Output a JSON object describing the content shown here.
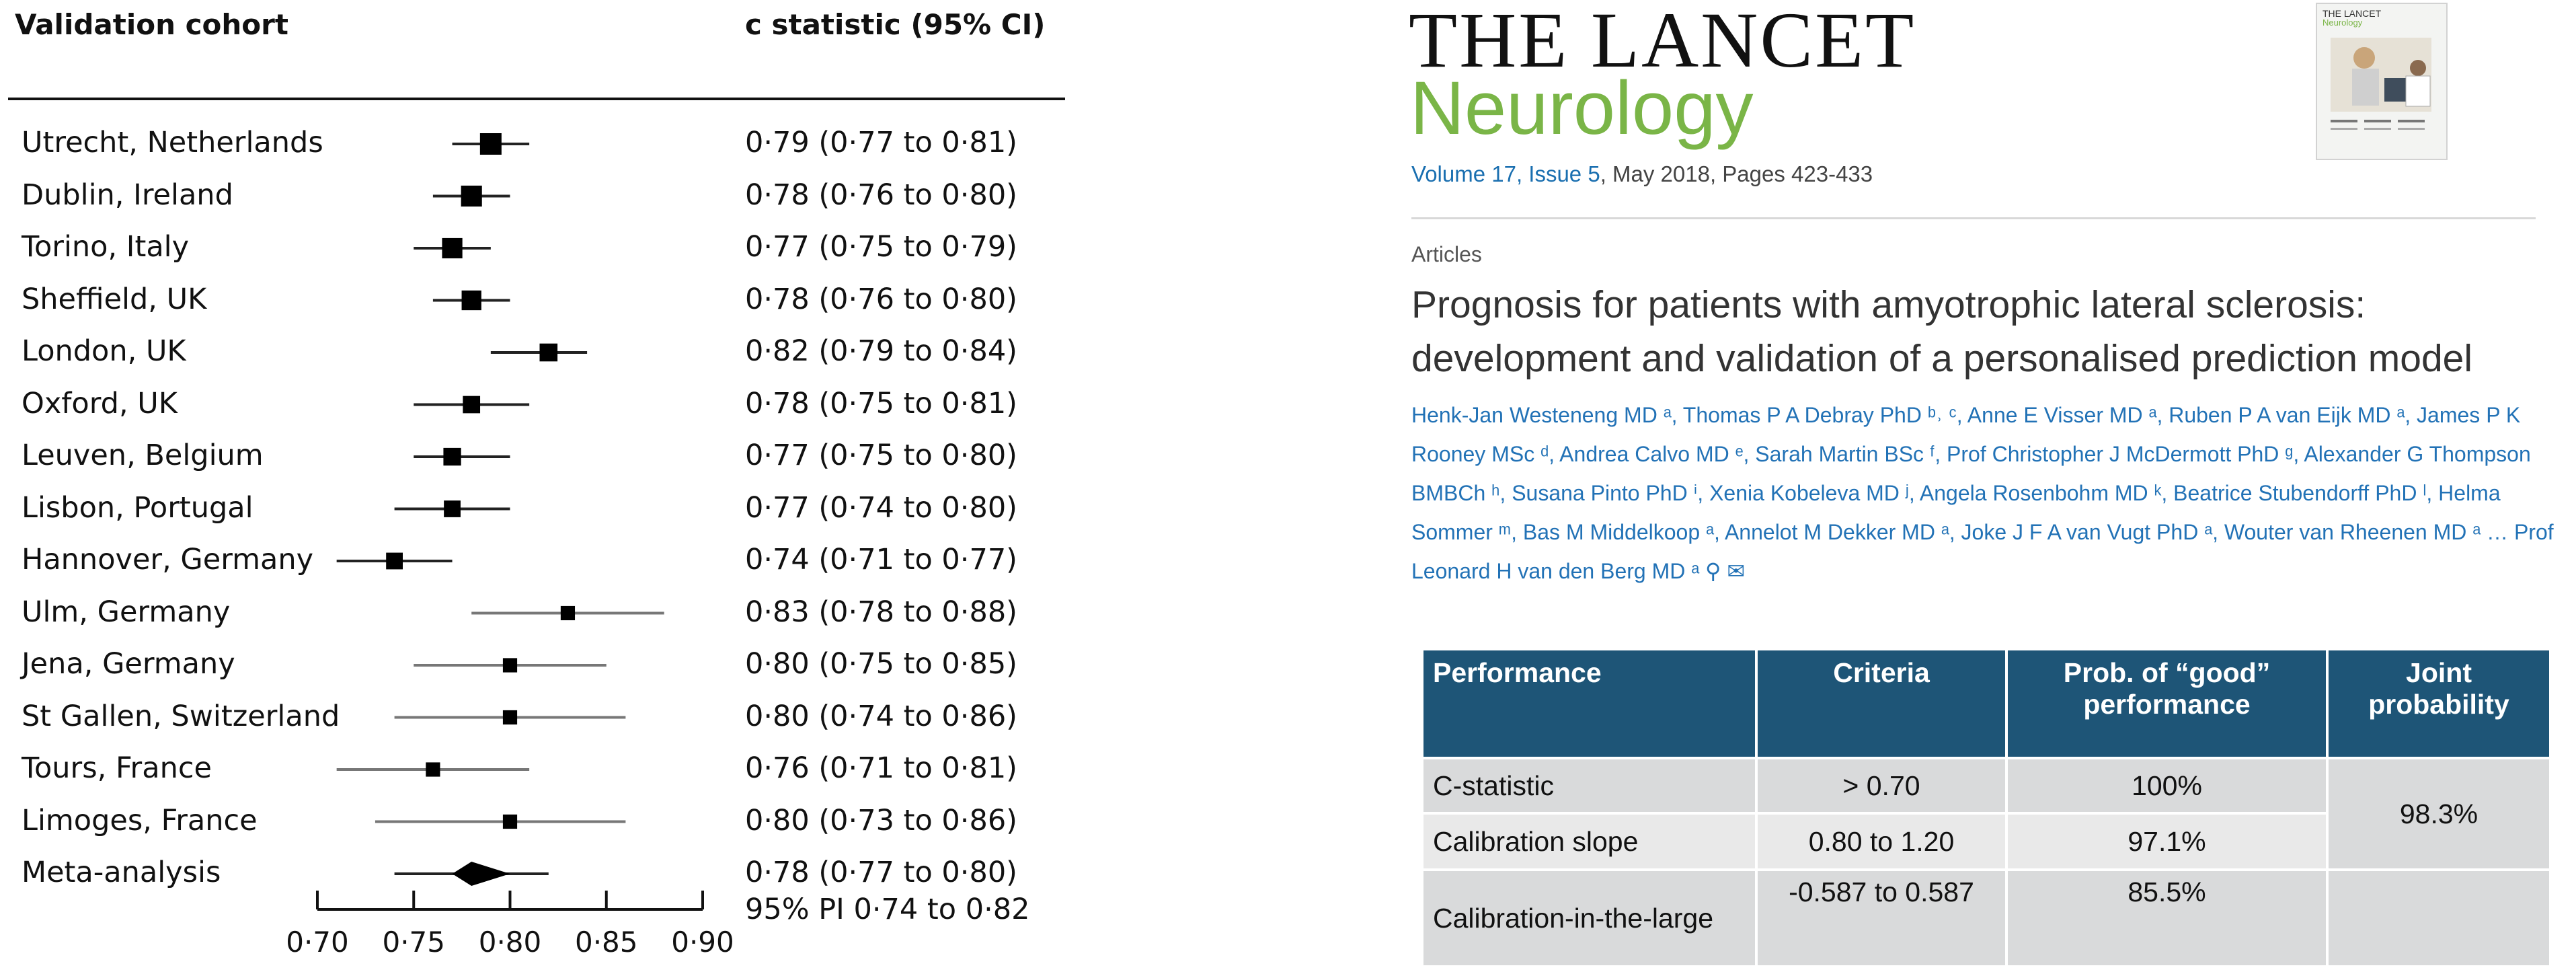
{
  "forest_plot": {
    "header_left": "Validation cohort",
    "header_right": "c statistic (95% CI)",
    "pi_text": "95% PI 0·74 to 0·82"
  },
  "chart_data": {
    "type": "forest",
    "x_ticks": [
      "0·70",
      "0·75",
      "0·80",
      "0·85",
      "0·90"
    ],
    "xlim": [
      0.7,
      0.9
    ],
    "rows": [
      {
        "label": "Utrecht, Netherlands",
        "ci_text": "0·79 (0·77 to 0·81)",
        "est": 0.79,
        "lo": 0.77,
        "hi": 0.81,
        "weight": 1.0
      },
      {
        "label": "Dublin, Ireland",
        "ci_text": "0·78 (0·76 to 0·80)",
        "est": 0.78,
        "lo": 0.76,
        "hi": 0.8,
        "weight": 0.95
      },
      {
        "label": "Torino, Italy",
        "ci_text": "0·77 (0·75 to 0·79)",
        "est": 0.77,
        "lo": 0.75,
        "hi": 0.79,
        "weight": 0.9
      },
      {
        "label": "Sheffield, UK",
        "ci_text": "0·78 (0·76 to 0·80)",
        "est": 0.78,
        "lo": 0.76,
        "hi": 0.8,
        "weight": 0.85
      },
      {
        "label": "London, UK",
        "ci_text": "0·82 (0·79 to 0·84)",
        "est": 0.82,
        "lo": 0.79,
        "hi": 0.84,
        "weight": 0.7
      },
      {
        "label": "Oxford, UK",
        "ci_text": "0·78 (0·75 to 0·81)",
        "est": 0.78,
        "lo": 0.75,
        "hi": 0.81,
        "weight": 0.65
      },
      {
        "label": "Leuven, Belgium",
        "ci_text": "0·77 (0·75 to 0·80)",
        "est": 0.77,
        "lo": 0.75,
        "hi": 0.8,
        "weight": 0.68
      },
      {
        "label": "Lisbon, Portugal",
        "ci_text": "0·77 (0·74 to 0·80)",
        "est": 0.77,
        "lo": 0.74,
        "hi": 0.8,
        "weight": 0.6
      },
      {
        "label": "Hannover, Germany",
        "ci_text": "0·74 (0·71 to 0·77)",
        "est": 0.74,
        "lo": 0.71,
        "hi": 0.77,
        "weight": 0.6
      },
      {
        "label": "Ulm, Germany",
        "ci_text": "0·83 (0·78 to 0·88)",
        "est": 0.83,
        "lo": 0.78,
        "hi": 0.88,
        "weight": 0.4
      },
      {
        "label": "Jena, Germany",
        "ci_text": "0·80 (0·75 to 0·85)",
        "est": 0.8,
        "lo": 0.75,
        "hi": 0.85,
        "weight": 0.4
      },
      {
        "label": "St Gallen, Switzerland",
        "ci_text": "0·80 (0·74 to 0·86)",
        "est": 0.8,
        "lo": 0.74,
        "hi": 0.86,
        "weight": 0.4
      },
      {
        "label": "Tours, France",
        "ci_text": "0·76 (0·71 to 0·81)",
        "est": 0.76,
        "lo": 0.71,
        "hi": 0.81,
        "weight": 0.4
      },
      {
        "label": "Limoges, France",
        "ci_text": "0·80 (0·73 to 0·86)",
        "est": 0.8,
        "lo": 0.73,
        "hi": 0.86,
        "weight": 0.4
      }
    ],
    "meta": {
      "label": "Meta-analysis",
      "ci_text": "0·78 (0·77 to 0·80)",
      "est": 0.78,
      "lo": 0.77,
      "hi": 0.8,
      "pi_lo": 0.74,
      "pi_hi": 0.82
    }
  },
  "article": {
    "journal_top": "THE LANCET",
    "journal_sub": "Neurology",
    "volume_link": "Volume 17, Issue 5",
    "volume_rest": ", May 2018, Pages 423-433",
    "cover_title": "THE LANCET",
    "cover_sub": "Neurology",
    "type": "Articles",
    "title": "Prognosis for patients with amyotrophic lateral sclerosis: development and validation of a personalised prediction model",
    "authors": "Henk-Jan Westeneng MD ᵃ, Thomas P A Debray PhD ᵇ˒ ᶜ, Anne E Visser MD ᵃ, Ruben P A van Eijk MD ᵃ, James P K Rooney MSc ᵈ, Andrea Calvo MD ᵉ, Sarah Martin BSc ᶠ, Prof Christopher J McDermott PhD ᵍ, Alexander G Thompson BMBCh ʰ, Susana Pinto PhD ⁱ, Xenia Kobeleva MD ʲ, Angela Rosenbohm MD ᵏ, Beatrice Stubendorff PhD ˡ, Helma Sommer ᵐ, Bas M Middelkoop ᵃ, Annelot M Dekker MD ᵃ, Joke J F A van Vugt PhD ᵃ, Wouter van Rheenen MD ᵃ … Prof Leonard H van den Berg MD ᵃ ⚲ ✉"
  },
  "table": {
    "headers": [
      "Performance",
      "Criteria",
      "Prob.  of “good” performance",
      "Joint probability"
    ],
    "rows": [
      {
        "performance": "C-statistic",
        "criteria": "> 0.70",
        "prob": "100%"
      },
      {
        "performance": "Calibration slope",
        "criteria": "0.80 to 1.20",
        "prob": "97.1%"
      },
      {
        "performance": "Calibration-in-the-large",
        "criteria": "-0.587 to 0.587",
        "prob": "85.5%"
      }
    ],
    "joint": "98.3%"
  },
  "colors": {
    "table_header": "#1e5577",
    "journal_green": "#7ab547",
    "link_blue": "#2272b6"
  }
}
